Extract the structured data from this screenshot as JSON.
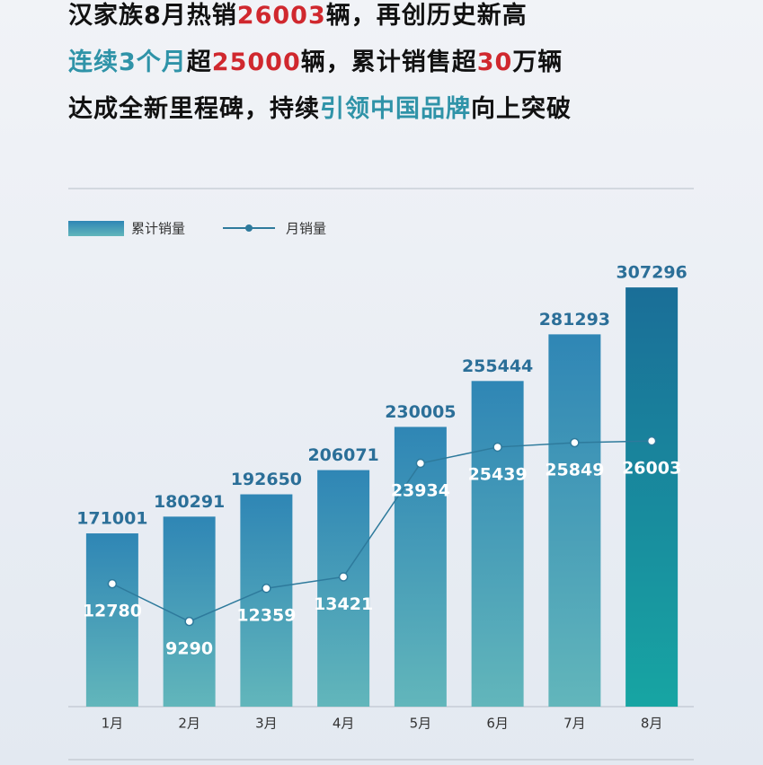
{
  "headline": [
    [
      {
        "text": "汉家族8月热销",
        "color": "#111111"
      },
      {
        "text": "26003",
        "color": "#d0282e"
      },
      {
        "text": "辆，再创历史新高",
        "color": "#111111"
      }
    ],
    [
      {
        "text": "连续3个月",
        "color": "#2f93a8"
      },
      {
        "text": "超",
        "color": "#111111"
      },
      {
        "text": "25000",
        "color": "#d0282e"
      },
      {
        "text": "辆，累计销售超",
        "color": "#111111"
      },
      {
        "text": "30",
        "color": "#d0282e"
      },
      {
        "text": "万辆",
        "color": "#111111"
      }
    ],
    [
      {
        "text": "达成全新里程碑，持续",
        "color": "#111111"
      },
      {
        "text": "引领中国品牌",
        "color": "#2f93a8"
      },
      {
        "text": "向上突破",
        "color": "#111111"
      }
    ]
  ],
  "chart_data": {
    "type": "bar",
    "categories": [
      "1月",
      "2月",
      "3月",
      "4月",
      "5月",
      "6月",
      "7月",
      "8月"
    ],
    "series": [
      {
        "name": "累计销量",
        "type": "bar",
        "color": "#2f86b5",
        "values": [
          171001,
          180291,
          192650,
          206071,
          230005,
          255444,
          281293,
          307296
        ]
      },
      {
        "name": "月销量",
        "type": "line",
        "axis": "y2",
        "color": "#2e7a9c",
        "values": [
          12780,
          9290,
          12359,
          13421,
          23934,
          25439,
          25849,
          26003
        ]
      }
    ],
    "ylim": [
      75000,
      317300
    ],
    "y2lim": [
      1400,
      41900
    ]
  }
}
